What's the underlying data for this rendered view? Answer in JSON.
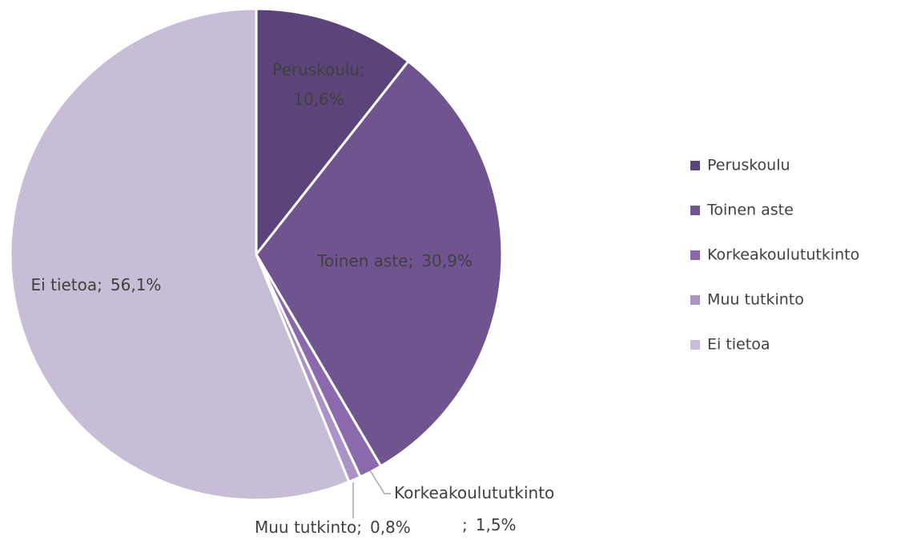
{
  "chart_data": {
    "type": "pie",
    "categories": [
      "Peruskoulu",
      "Toinen aste",
      "Korkeakoulututkinto",
      "Muu tutkinto",
      "Ei tietoa"
    ],
    "values": [
      10.6,
      30.9,
      1.5,
      0.8,
      56.1
    ],
    "value_labels": [
      "10,6%",
      "30,9%",
      "1,5%",
      "0,8%",
      "56,1%"
    ],
    "label_separator": ";",
    "colors": [
      "#5b4479",
      "#6f5490",
      "#8a6aad",
      "#ab92c7",
      "#c7bdd6"
    ],
    "legend": "right"
  }
}
